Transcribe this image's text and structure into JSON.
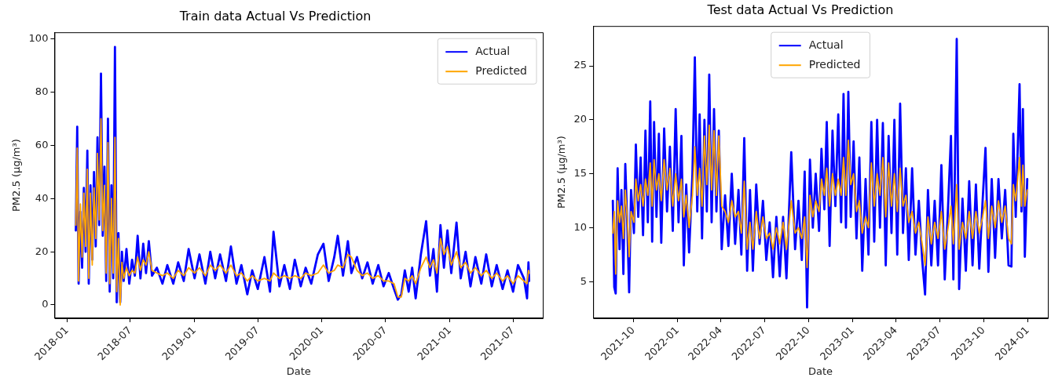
{
  "chart_data": [
    {
      "type": "line",
      "title": "Train data Actual Vs Prediction",
      "xlabel": "Date",
      "ylabel": "PM2.5 (μg/m³)",
      "legend": "top right",
      "grid": false,
      "xlim": [
        "2017-11-26",
        "2021-09-24"
      ],
      "xticks": [
        "2018-01",
        "2018-07",
        "2019-01",
        "2019-07",
        "2020-01",
        "2020-07",
        "2021-01",
        "2021-07"
      ],
      "ylim": [
        -5,
        102.5
      ],
      "yticks": [
        0,
        20,
        40,
        60,
        80,
        100
      ],
      "x": [
        "2018-01-26",
        "2018-01-30",
        "2018-02-03",
        "2018-02-08",
        "2018-02-13",
        "2018-02-18",
        "2018-02-23",
        "2018-02-28",
        "2018-03-04",
        "2018-03-09",
        "2018-03-14",
        "2018-03-19",
        "2018-03-24",
        "2018-03-29",
        "2018-04-03",
        "2018-04-08",
        "2018-04-13",
        "2018-04-18",
        "2018-04-23",
        "2018-04-28",
        "2018-05-03",
        "2018-05-08",
        "2018-05-13",
        "2018-05-18",
        "2018-05-23",
        "2018-05-28",
        "2018-06-02",
        "2018-06-07",
        "2018-06-12",
        "2018-06-20",
        "2018-06-28",
        "2018-07-06",
        "2018-07-14",
        "2018-07-22",
        "2018-07-30",
        "2018-08-07",
        "2018-08-15",
        "2018-08-23",
        "2018-09-01",
        "2018-09-15",
        "2018-10-01",
        "2018-10-15",
        "2018-11-01",
        "2018-11-15",
        "2018-12-01",
        "2018-12-15",
        "2019-01-01",
        "2019-01-15",
        "2019-02-01",
        "2019-02-15",
        "2019-03-01",
        "2019-03-15",
        "2019-04-01",
        "2019-04-15",
        "2019-05-01",
        "2019-05-15",
        "2019-06-01",
        "2019-06-15",
        "2019-07-01",
        "2019-07-20",
        "2019-08-05",
        "2019-08-15",
        "2019-09-01",
        "2019-09-15",
        "2019-10-01",
        "2019-10-15",
        "2019-11-01",
        "2019-11-15",
        "2019-12-01",
        "2019-12-20",
        "2020-01-05",
        "2020-01-20",
        "2020-02-05",
        "2020-02-15",
        "2020-03-01",
        "2020-03-15",
        "2020-03-25",
        "2020-04-10",
        "2020-04-25",
        "2020-05-10",
        "2020-05-25",
        "2020-06-10",
        "2020-06-25",
        "2020-07-10",
        "2020-07-25",
        "2020-08-05",
        "2020-08-15",
        "2020-08-25",
        "2020-09-05",
        "2020-09-15",
        "2020-09-25",
        "2020-10-10",
        "2020-10-25",
        "2020-11-05",
        "2020-11-15",
        "2020-11-25",
        "2020-12-05",
        "2020-12-15",
        "2020-12-25",
        "2021-01-05",
        "2021-01-20",
        "2021-02-01",
        "2021-02-15",
        "2021-03-01",
        "2021-03-15",
        "2021-04-01",
        "2021-04-15",
        "2021-05-01",
        "2021-05-15",
        "2021-06-01",
        "2021-06-15",
        "2021-07-01",
        "2021-07-15",
        "2021-08-01",
        "2021-08-10",
        "2021-08-14",
        "2021-08-16"
      ],
      "series": [
        {
          "name": "Actual",
          "color": "#0000ff",
          "values": [
            28,
            67,
            8,
            35,
            14,
            44,
            20,
            58,
            8,
            45,
            17,
            50,
            22,
            63,
            30,
            87,
            26,
            52,
            9,
            70,
            5,
            45,
            10,
            97,
            1,
            27,
            1,
            20,
            9,
            21,
            8,
            17,
            11,
            26,
            10,
            23,
            12,
            24,
            11,
            14,
            8,
            15,
            8,
            16,
            9,
            21,
            10,
            19,
            8,
            20,
            10,
            19,
            9,
            22,
            8,
            15,
            4,
            13,
            6,
            18,
            5,
            27.5,
            7,
            15,
            6,
            17,
            7,
            14,
            8,
            19,
            23,
            9,
            18,
            26,
            11,
            24,
            12,
            18,
            10,
            16,
            8,
            15,
            7,
            12,
            6,
            2,
            4,
            13,
            5,
            14,
            2.5,
            19,
            31.5,
            11,
            21,
            5,
            30,
            14,
            28,
            12,
            31,
            10,
            20,
            7,
            18,
            8,
            19,
            7,
            15,
            6,
            13,
            5,
            15,
            10,
            2.5,
            16,
            9
          ]
        },
        {
          "name": "Predicted",
          "color": "#ffa500",
          "values": [
            30,
            59,
            9,
            38,
            18,
            42,
            22,
            51,
            10,
            42,
            15,
            44,
            25,
            57,
            32,
            70,
            28,
            45,
            12,
            61,
            8,
            40,
            12,
            63,
            5,
            25,
            0,
            16,
            10,
            14,
            11,
            13,
            12,
            18,
            13,
            17,
            15,
            20,
            13,
            12,
            11,
            12,
            10,
            13,
            11,
            14,
            12,
            14,
            11,
            15,
            13,
            15,
            12,
            15,
            11,
            12,
            9,
            11,
            9,
            10,
            9,
            12,
            10,
            11,
            10,
            11,
            10,
            12,
            11,
            12,
            15,
            12,
            13,
            15,
            14,
            19,
            18,
            13,
            11,
            12,
            10,
            11,
            9,
            9,
            8,
            3,
            3,
            10,
            9,
            11,
            8,
            14,
            18,
            14,
            17,
            12,
            25,
            19,
            22,
            15,
            20,
            14,
            16,
            12,
            14,
            11,
            13,
            10,
            12,
            9,
            11,
            8,
            11,
            9,
            8,
            13,
            12
          ]
        }
      ]
    },
    {
      "type": "line",
      "title": "Test data Actual Vs Prediction",
      "xlabel": "Date",
      "ylabel": "PM2.5 (μg/m³)",
      "legend": "top",
      "grid": false,
      "xlim": [
        "2021-07-09",
        "2024-02-12"
      ],
      "xticks": [
        "2021-10",
        "2022-01",
        "2022-04",
        "2022-07",
        "2022-10",
        "2023-01",
        "2023-04",
        "2023-07",
        "2023-10",
        "2024-01"
      ],
      "ylim": [
        1.6,
        28.7
      ],
      "yticks": [
        5,
        10,
        15,
        20,
        25
      ],
      "x": [
        "2021-08-19",
        "2021-08-22",
        "2021-08-25",
        "2021-08-29",
        "2021-09-02",
        "2021-09-06",
        "2021-09-10",
        "2021-09-14",
        "2021-09-18",
        "2021-09-22",
        "2021-09-26",
        "2021-10-02",
        "2021-10-06",
        "2021-10-11",
        "2021-10-16",
        "2021-10-21",
        "2021-10-26",
        "2021-10-31",
        "2021-11-05",
        "2021-11-09",
        "2021-11-13",
        "2021-11-18",
        "2021-11-23",
        "2021-11-28",
        "2021-12-04",
        "2021-12-10",
        "2021-12-16",
        "2021-12-22",
        "2021-12-28",
        "2022-01-03",
        "2022-01-09",
        "2022-01-14",
        "2022-01-19",
        "2022-01-25",
        "2022-02-01",
        "2022-02-06",
        "2022-02-11",
        "2022-02-16",
        "2022-02-21",
        "2022-02-26",
        "2022-03-03",
        "2022-03-08",
        "2022-03-13",
        "2022-03-18",
        "2022-03-23",
        "2022-03-28",
        "2022-04-03",
        "2022-04-10",
        "2022-04-17",
        "2022-04-24",
        "2022-05-01",
        "2022-05-08",
        "2022-05-14",
        "2022-05-20",
        "2022-05-26",
        "2022-06-01",
        "2022-06-07",
        "2022-06-14",
        "2022-06-21",
        "2022-06-28",
        "2022-07-05",
        "2022-07-12",
        "2022-07-19",
        "2022-07-26",
        "2022-08-02",
        "2022-08-09",
        "2022-08-16",
        "2022-08-26",
        "2022-09-03",
        "2022-09-10",
        "2022-09-17",
        "2022-09-23",
        "2022-09-28",
        "2022-10-04",
        "2022-10-10",
        "2022-10-16",
        "2022-10-23",
        "2022-10-28",
        "2022-11-03",
        "2022-11-08",
        "2022-11-14",
        "2022-11-20",
        "2022-11-26",
        "2022-12-02",
        "2022-12-08",
        "2022-12-13",
        "2022-12-18",
        "2022-12-23",
        "2022-12-28",
        "2023-01-03",
        "2023-01-09",
        "2023-01-15",
        "2023-01-21",
        "2023-01-28",
        "2023-02-03",
        "2023-02-09",
        "2023-02-15",
        "2023-02-21",
        "2023-02-27",
        "2023-03-05",
        "2023-03-11",
        "2023-03-17",
        "2023-03-23",
        "2023-03-29",
        "2023-04-04",
        "2023-04-10",
        "2023-04-16",
        "2023-04-22",
        "2023-04-28",
        "2023-05-05",
        "2023-05-12",
        "2023-05-19",
        "2023-05-26",
        "2023-06-01",
        "2023-06-07",
        "2023-06-14",
        "2023-06-21",
        "2023-06-28",
        "2023-07-05",
        "2023-07-12",
        "2023-07-19",
        "2023-07-25",
        "2023-07-30",
        "2023-08-06",
        "2023-08-11",
        "2023-08-18",
        "2023-08-25",
        "2023-09-01",
        "2023-09-08",
        "2023-09-15",
        "2023-09-22",
        "2023-09-29",
        "2023-10-05",
        "2023-10-11",
        "2023-10-18",
        "2023-10-25",
        "2023-11-01",
        "2023-11-08",
        "2023-11-15",
        "2023-11-22",
        "2023-11-28",
        "2023-12-02",
        "2023-12-07",
        "2023-12-11",
        "2023-12-15",
        "2023-12-19",
        "2023-12-22",
        "2023-12-26",
        "2023-12-31"
      ],
      "series": [
        {
          "name": "Actual",
          "color": "#0000ff",
          "values": [
            12.5,
            4.5,
            3.9,
            15.5,
            8,
            13.5,
            5.7,
            15.9,
            10.5,
            4,
            13.5,
            9.5,
            17.7,
            11,
            16.5,
            9.3,
            19,
            10.5,
            21.7,
            8.7,
            19.8,
            11,
            18.7,
            8.6,
            19.2,
            11.5,
            17.5,
            9.7,
            21,
            10.5,
            18.5,
            6.5,
            14,
            7.7,
            15,
            25.8,
            11.5,
            20.5,
            9,
            20,
            11.5,
            24.2,
            10.5,
            21,
            11.5,
            19,
            8,
            13,
            8.3,
            15,
            8.5,
            13.5,
            7.5,
            18.3,
            6,
            13.5,
            6,
            14,
            8.5,
            12.5,
            7,
            10.5,
            5.4,
            11,
            5.5,
            11,
            5.3,
            17,
            8,
            12.5,
            7,
            15.2,
            2.6,
            16.3,
            10,
            15,
            9.7,
            17.3,
            11.7,
            19.8,
            8.3,
            19,
            12,
            20.5,
            10.5,
            22.4,
            10,
            22.6,
            11,
            18,
            9,
            16.5,
            6,
            14.5,
            7.5,
            19.8,
            8.7,
            20,
            10,
            19.7,
            6.5,
            18.5,
            9.5,
            20,
            7.5,
            21.5,
            9.5,
            15.5,
            7,
            15.5,
            7.5,
            12.5,
            7,
            3.8,
            13.5,
            6.5,
            12.5,
            6.5,
            15.8,
            5.2,
            12,
            18.5,
            5.2,
            27.5,
            4.3,
            12.7,
            6,
            14.3,
            6.5,
            14,
            6.2,
            12.5,
            17.4,
            5.9,
            14.5,
            7.2,
            14.5,
            9,
            13.5,
            6.5,
            6.4,
            18.7,
            11,
            17,
            23.3,
            11.5,
            21,
            7.3,
            14.5
          ]
        },
        {
          "name": "Predicted",
          "color": "#ffa500",
          "values": [
            9.5,
            11.5,
            5.7,
            12.5,
            10.5,
            12,
            9,
            13.5,
            11,
            7.3,
            11.5,
            10.5,
            14.5,
            12.5,
            14,
            12,
            14.5,
            13,
            16,
            12,
            16.3,
            13.5,
            15,
            12.5,
            16.3,
            13.5,
            15.5,
            12,
            15,
            12.5,
            14.5,
            11,
            13,
            10,
            13,
            17.5,
            13,
            15.5,
            12,
            18.5,
            14,
            19.5,
            13.5,
            19,
            13,
            18.5,
            12,
            11.5,
            10.5,
            12.5,
            11,
            11.5,
            9.5,
            14.3,
            8,
            10.5,
            8,
            11.5,
            9,
            11,
            9,
            9.5,
            8,
            10,
            8.5,
            10.5,
            8,
            12.5,
            9.5,
            10,
            9,
            11,
            6.3,
            13,
            11,
            12.5,
            11.5,
            14.5,
            13,
            15.5,
            12,
            15,
            13,
            14.5,
            13,
            16.5,
            13,
            18.1,
            14,
            15,
            11.5,
            12.5,
            9.5,
            11,
            10,
            16,
            12,
            15,
            13,
            16.5,
            11,
            16,
            12,
            15,
            11.5,
            15.5,
            12,
            13,
            10.5,
            11.5,
            9.5,
            10.5,
            8.5,
            6.5,
            11,
            8.5,
            10.5,
            9,
            11.5,
            8,
            10,
            12,
            8.5,
            14,
            8,
            10.5,
            9,
            11.5,
            9,
            11.5,
            9.5,
            11,
            12.5,
            9,
            12,
            10,
            12.5,
            10.5,
            12,
            9,
            8.5,
            14,
            12.5,
            14.5,
            16.5,
            12,
            15.8,
            12,
            13.5
          ]
        }
      ]
    }
  ]
}
